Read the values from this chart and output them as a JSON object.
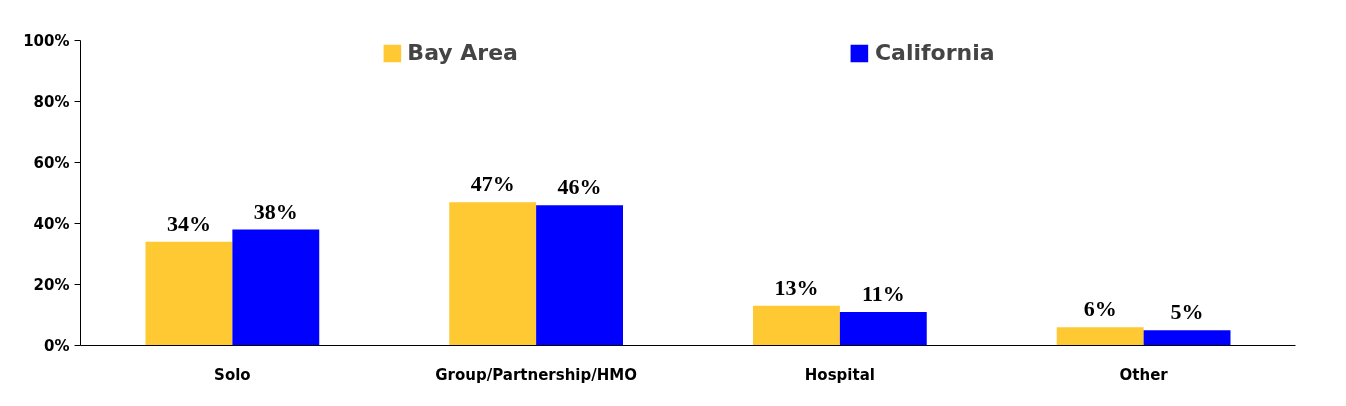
{
  "chart_data": {
    "type": "bar",
    "categories": [
      "Solo",
      "Group/Partnership/HMO",
      "Hospital",
      "Other"
    ],
    "series": [
      {
        "name": "Bay Area",
        "color": "#ffc933",
        "values": [
          34,
          47,
          13,
          6
        ],
        "value_labels": [
          "34%",
          "47%",
          "13%",
          "6%"
        ]
      },
      {
        "name": "California",
        "color": "#0000ff",
        "values": [
          38,
          46,
          11,
          5
        ],
        "value_labels": [
          "38%",
          "46%",
          "11%",
          "5%"
        ]
      }
    ],
    "ylim": [
      0,
      100
    ],
    "yticks": [
      {
        "value": 0,
        "label": "0%"
      },
      {
        "value": 20,
        "label": "20%"
      },
      {
        "value": 40,
        "label": "40%"
      },
      {
        "value": 60,
        "label": "60%"
      },
      {
        "value": 80,
        "label": "80%"
      },
      {
        "value": 100,
        "label": "100%"
      }
    ],
    "grid": false,
    "legend": "top"
  }
}
